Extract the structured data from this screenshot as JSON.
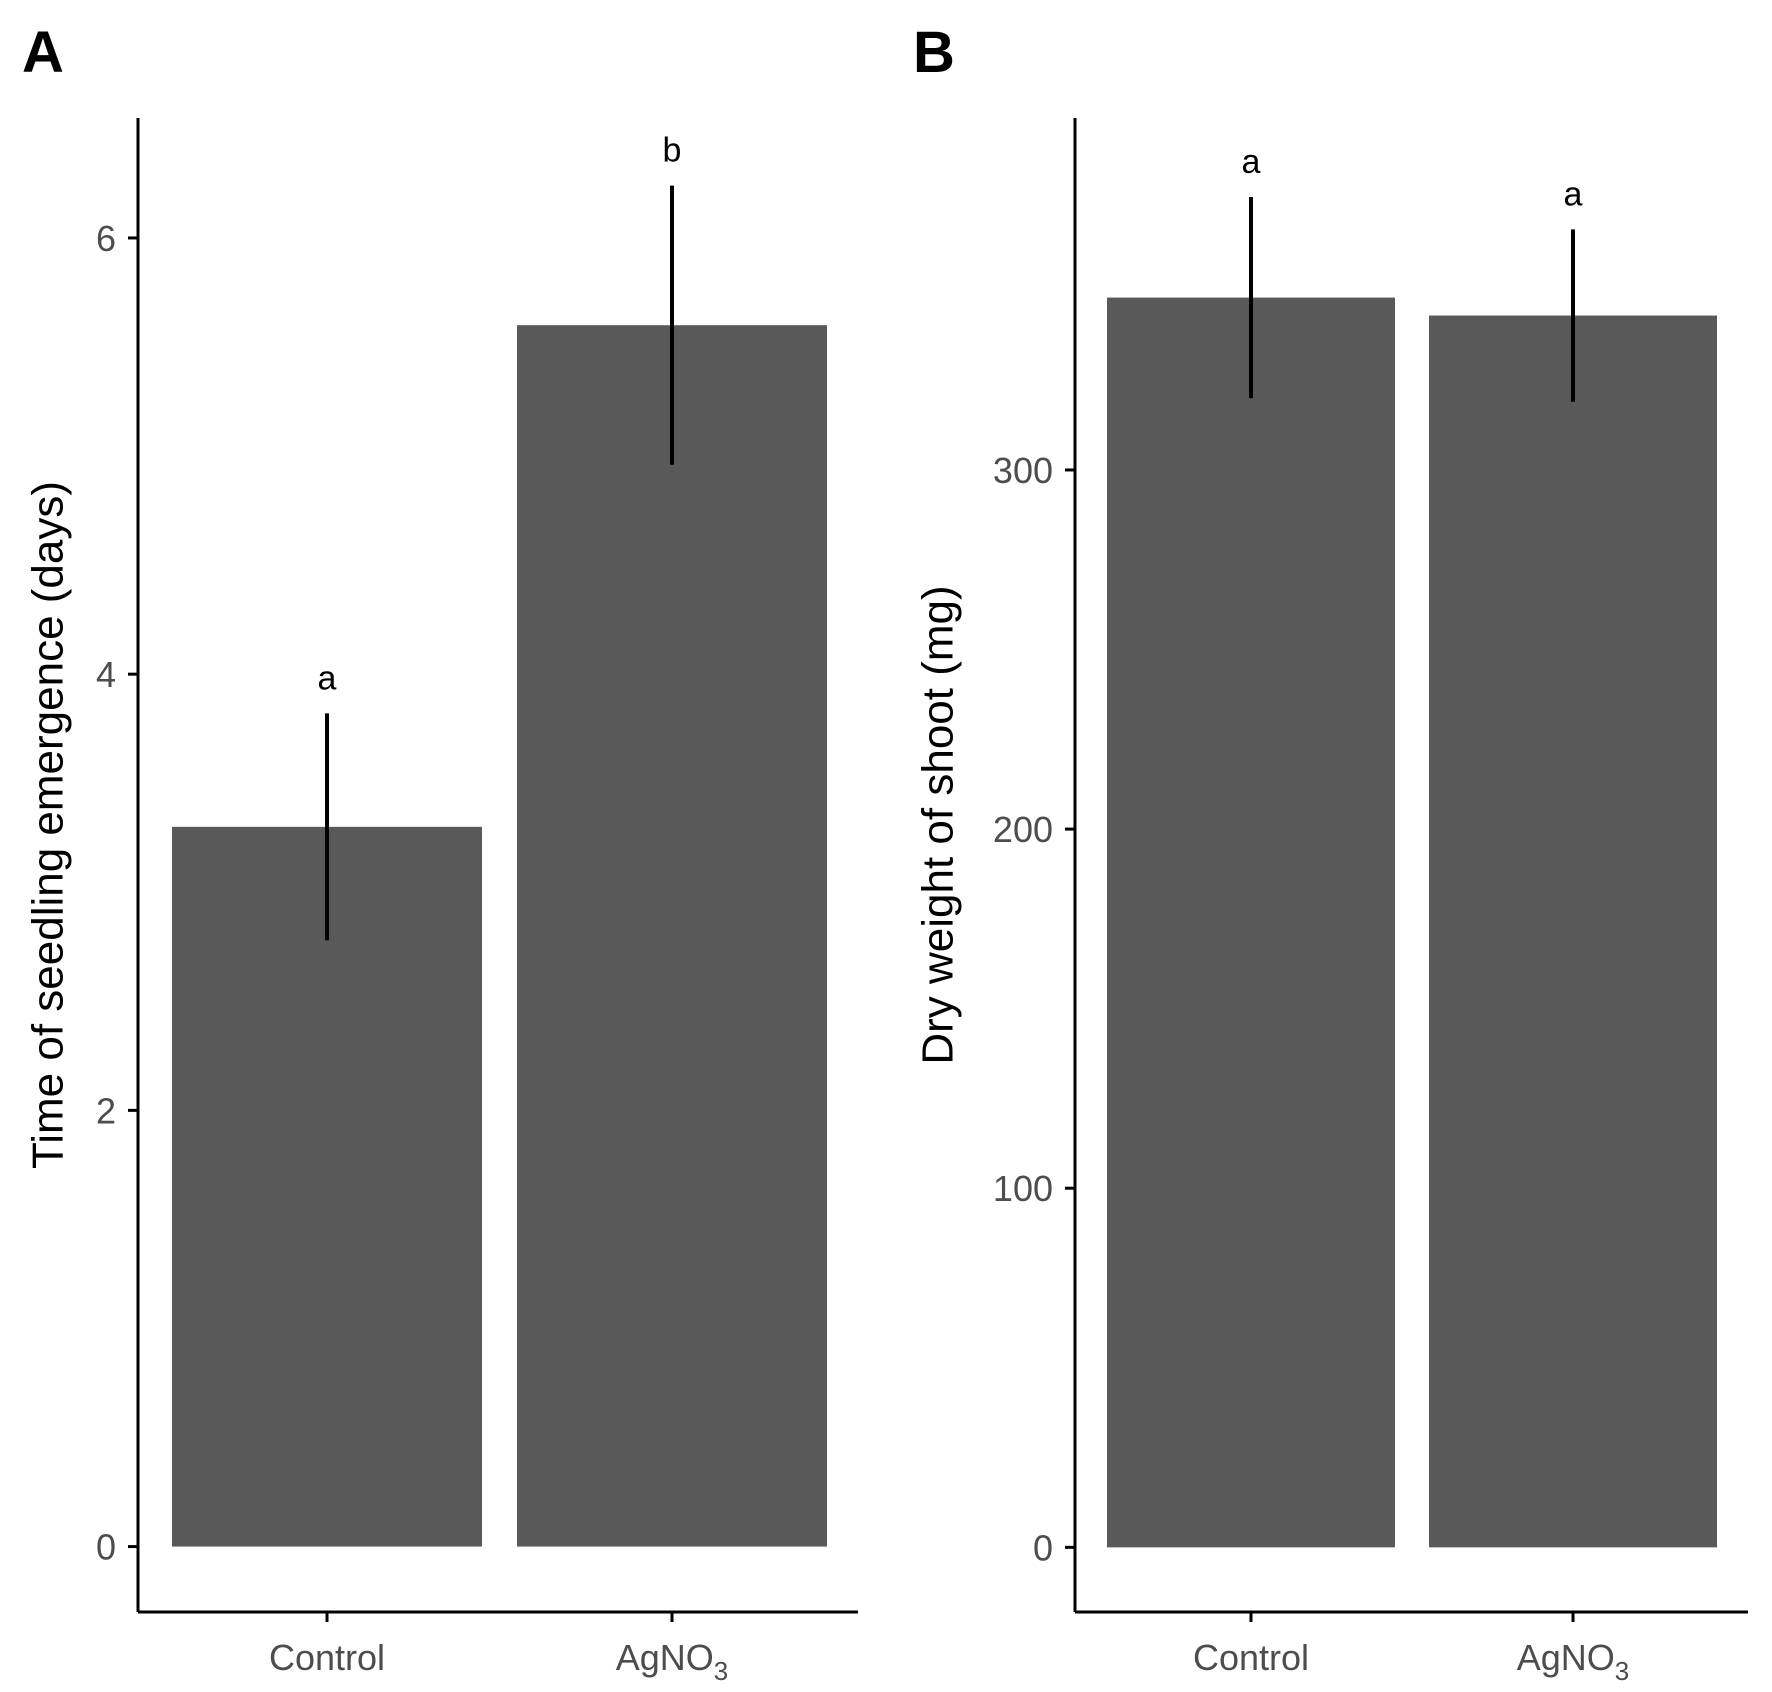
{
  "chart_data": [
    {
      "panel": "A",
      "type": "bar",
      "categories": [
        "Control",
        "AgNO3"
      ],
      "category_labels": [
        {
          "base": "Control",
          "sub": ""
        },
        {
          "base": "AgNO",
          "sub": "3"
        }
      ],
      "values": [
        3.3,
        5.6
      ],
      "error": [
        0.52,
        0.64
      ],
      "significance": [
        "a",
        "b"
      ],
      "ylabel": "Time of seedling emergence (days)",
      "xlabel": "",
      "ylim": [
        -0.3,
        6.55
      ],
      "yticks": [
        0,
        2,
        4,
        6
      ],
      "bar_color": "#595959",
      "grid": false
    },
    {
      "panel": "B",
      "type": "bar",
      "categories": [
        "Control",
        "AgNO3"
      ],
      "category_labels": [
        {
          "base": "Control",
          "sub": ""
        },
        {
          "base": "AgNO",
          "sub": "3"
        }
      ],
      "values": [
        348,
        343
      ],
      "error": [
        28,
        24
      ],
      "significance": [
        "a",
        "a"
      ],
      "ylabel": "Dry weight of shoot (mg)",
      "xlabel": "",
      "ylim": [
        -18,
        398
      ],
      "yticks": [
        0,
        100,
        200,
        300
      ],
      "bar_color": "#595959",
      "grid": false
    }
  ]
}
